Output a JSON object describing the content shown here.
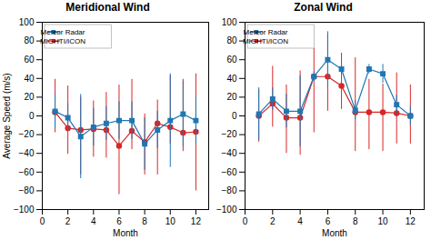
{
  "chart_data": [
    {
      "type": "line",
      "title": "Meridional Wind",
      "xlabel": "Month",
      "ylabel": "Average Speed (m/s)",
      "x": [
        1,
        2,
        3,
        4,
        5,
        6,
        7,
        8,
        9,
        10,
        11,
        12
      ],
      "series": [
        {
          "name": "Meteor Radar",
          "color": "#1f77b4",
          "marker": "square",
          "line_style": "solid",
          "values": [
            5,
            -2,
            -22,
            -12,
            -8,
            -5,
            -5,
            -30,
            -15,
            -5,
            2,
            -5
          ],
          "err_up": [
            18,
            15,
            45,
            20,
            18,
            20,
            20,
            28,
            20,
            50,
            35,
            25
          ],
          "err_dn": [
            18,
            15,
            45,
            20,
            18,
            20,
            20,
            28,
            20,
            50,
            35,
            25
          ]
        },
        {
          "name": "MIGHTI/ICON",
          "color": "#d62728",
          "marker": "circle",
          "line_style": "solid",
          "values": [
            4,
            -13,
            -15,
            -14,
            -15,
            -32,
            -16,
            -28,
            -8,
            -12,
            -18,
            -17
          ],
          "err_up": [
            35,
            45,
            35,
            30,
            40,
            65,
            55,
            30,
            25,
            55,
            57,
            62
          ],
          "err_dn": [
            22,
            28,
            48,
            30,
            30,
            52,
            20,
            35,
            55,
            18,
            20,
            63
          ]
        }
      ],
      "xlim": [
        0,
        13
      ],
      "xticks": [
        0,
        2,
        4,
        6,
        8,
        10,
        12
      ],
      "ylim": [
        -100,
        100
      ],
      "yticks": [
        -100,
        -80,
        -60,
        -40,
        -20,
        0,
        20,
        40,
        60,
        80,
        100
      ],
      "grid": false,
      "legend": "upper left"
    },
    {
      "type": "line",
      "title": "Zonal Wind",
      "xlabel": "Month",
      "x": [
        1,
        2,
        3,
        4,
        5,
        6,
        7,
        8,
        9,
        10,
        11,
        12
      ],
      "series": [
        {
          "name": "Meteor Radar",
          "color": "#1f77b4",
          "marker": "square",
          "line_style": "solid",
          "values": [
            2,
            18,
            5,
            5,
            42,
            60,
            50,
            6,
            50,
            45,
            12,
            0
          ],
          "err_up": [
            28,
            12,
            18,
            38,
            5,
            30,
            5,
            10,
            5,
            10,
            10,
            10
          ],
          "err_dn": [
            28,
            12,
            18,
            38,
            5,
            30,
            5,
            10,
            5,
            10,
            10,
            10
          ]
        },
        {
          "name": "MIGHTI/ICON",
          "color": "#d62728",
          "marker": "circle",
          "line_style": "solid",
          "values": [
            0,
            13,
            -2,
            -2,
            42,
            42,
            32,
            4,
            4,
            4,
            3,
            0
          ],
          "err_up": [
            28,
            40,
            35,
            50,
            30,
            45,
            35,
            58,
            35,
            30,
            43,
            33
          ],
          "err_dn": [
            28,
            25,
            38,
            40,
            60,
            37,
            25,
            42,
            40,
            42,
            33,
            30
          ]
        }
      ],
      "xlim": [
        0,
        13
      ],
      "xticks": [
        0,
        2,
        4,
        6,
        8,
        10,
        12
      ],
      "ylim": [
        -100,
        100
      ],
      "yticks": [
        -100,
        -80,
        -60,
        -40,
        -20,
        0,
        20,
        40,
        60,
        80,
        100
      ],
      "grid": false,
      "legend": "upper left"
    }
  ]
}
